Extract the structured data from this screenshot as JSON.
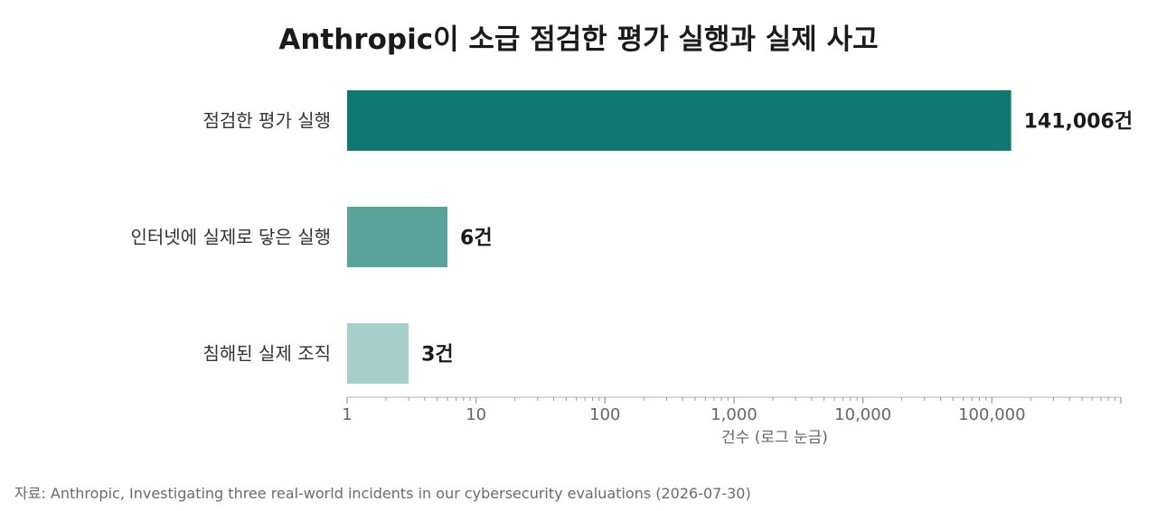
{
  "chart_data": {
    "type": "bar",
    "orientation": "horizontal",
    "title": "Anthropic이 소급 점검한 평가 실행과 실제 사고",
    "xlabel": "건수 (로그 눈금)",
    "ylabel": "",
    "x_scale": "log",
    "xlim": [
      1,
      1000000
    ],
    "categories": [
      "점검한 평가 실행",
      "인터넷에 실제로 닿은 실행",
      "침해된 실제 조직"
    ],
    "values": [
      141006,
      6,
      3
    ],
    "value_labels": [
      "141,006건",
      "6건",
      "3건"
    ],
    "colors": [
      "#117870",
      "#5aa39b",
      "#a6cfca"
    ],
    "tick_values": [
      1,
      10,
      100,
      1000,
      10000,
      100000
    ],
    "tick_labels": [
      "1",
      "10",
      "100",
      "1,000",
      "10,000",
      "100,000"
    ],
    "grid": false,
    "legend": "none"
  },
  "source": "자료: Anthropic, Investigating three real-world incidents in our cybersecurity evaluations (2026-07-30)"
}
